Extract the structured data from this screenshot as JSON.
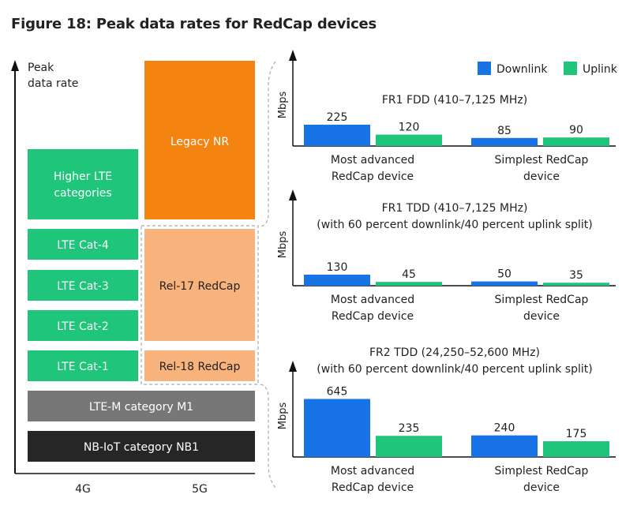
{
  "figure_title": "Figure 18: Peak data rates for RedCap devices",
  "colors": {
    "downlink": "#1874e6",
    "uplink": "#1ec57a",
    "lte_green": "#1ec57a",
    "legacy_nr": "#f4830f",
    "redcap_peach": "#f8b37d",
    "lte_m_gray": "#777777",
    "nbiot_dark": "#262626"
  },
  "left": {
    "y_axis_label_line1": "Peak",
    "y_axis_label_line2": "data rate",
    "x_label_4g": "4G",
    "x_label_5g": "5G",
    "higher_lte_line1": "Higher LTE",
    "higher_lte_line2": "categories",
    "lte_cat4": "LTE Cat-4",
    "lte_cat3": "LTE Cat-3",
    "lte_cat2": "LTE Cat-2",
    "lte_cat1": "LTE Cat-1",
    "legacy_nr": "Legacy NR",
    "rel17": "Rel-17 RedCap",
    "rel18": "Rel-18 RedCap",
    "lte_m": "LTE-M category M1",
    "nb_iot": "NB-IoT category NB1"
  },
  "legend": {
    "downlink": "Downlink",
    "uplink": "Uplink"
  },
  "chart_data": [
    {
      "type": "bar",
      "title": "FR1 FDD (410–7,125 MHz)",
      "subtitle": "",
      "ylabel": "Mbps",
      "categories": [
        "Most advanced|RedCap device",
        "Simplest RedCap|device"
      ],
      "series": [
        {
          "name": "Downlink",
          "values": [
            225,
            85
          ]
        },
        {
          "name": "Uplink",
          "values": [
            120,
            90
          ]
        }
      ],
      "ylim": [
        0,
        645
      ],
      "legend": "top-right"
    },
    {
      "type": "bar",
      "title": "FR1 TDD (410–7,125 MHz)",
      "subtitle": "(with 60 percent downlink/40 percent uplink split)",
      "ylabel": "Mbps",
      "categories": [
        "Most advanced|RedCap device",
        "Simplest RedCap|device"
      ],
      "series": [
        {
          "name": "Downlink",
          "values": [
            130,
            50
          ]
        },
        {
          "name": "Uplink",
          "values": [
            45,
            35
          ]
        }
      ],
      "ylim": [
        0,
        645
      ]
    },
    {
      "type": "bar",
      "title": "FR2 TDD (24,250–52,600 MHz)",
      "subtitle": "(with 60 percent downlink/40 percent uplink split)",
      "ylabel": "Mbps",
      "categories": [
        "Most advanced|RedCap device",
        "Simplest RedCap|device"
      ],
      "series": [
        {
          "name": "Downlink",
          "values": [
            645,
            240
          ]
        },
        {
          "name": "Uplink",
          "values": [
            235,
            175
          ]
        }
      ],
      "ylim": [
        0,
        645
      ]
    }
  ]
}
